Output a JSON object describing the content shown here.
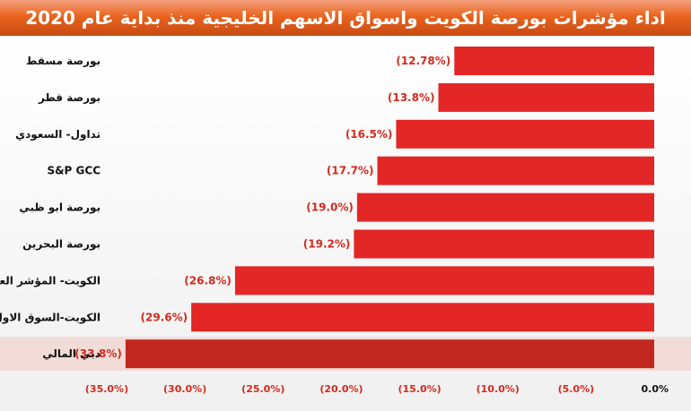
{
  "title": "اداء مؤشرات بورصة الكويت واسواق الاسهم الخليجية منذ بداية عام 2020",
  "colors": {
    "title_bar": "#e9641f",
    "bar": "#e32626",
    "bar_highlight": "#c0281f",
    "value_label": "#d42a1e"
  },
  "chart_data": {
    "type": "bar",
    "orientation": "horizontal",
    "title": "اداء مؤشرات بورصة الكويت واسواق الاسهم الخليجية منذ بداية عام 2020",
    "categories": [
      "بورصة مسقط",
      "بورصة قطر",
      "تداول- السعودي",
      "S&P GCC",
      "بورصة ابو ظبي",
      "بورصة البحرين",
      "الكويت- المؤشر العام",
      "الكويت-السوق الاول",
      "دبي المالي"
    ],
    "values": [
      -12.78,
      -13.8,
      -16.5,
      -17.7,
      -19.0,
      -19.2,
      -26.8,
      -29.6,
      -33.8
    ],
    "value_labels": [
      "(12.78%)",
      "(13.8%)",
      "(16.5%)",
      "(17.7%)",
      "(19.0%)",
      "(19.2%)",
      "(26.8%)",
      "(29.6%)",
      "(33.8%)"
    ],
    "xlim": [
      -35,
      0
    ],
    "x_ticks": [
      -35,
      -30,
      -25,
      -20,
      -15,
      -10,
      -5,
      0
    ],
    "x_tick_labels": [
      "(35.0%)",
      "(30.0%)",
      "(25.0%)",
      "(20.0%)",
      "(15.0%)",
      "(10.0%)",
      "(5.0%)",
      "0.0%"
    ],
    "xlabel": "",
    "ylabel": "",
    "grid": false,
    "legend": "none"
  }
}
